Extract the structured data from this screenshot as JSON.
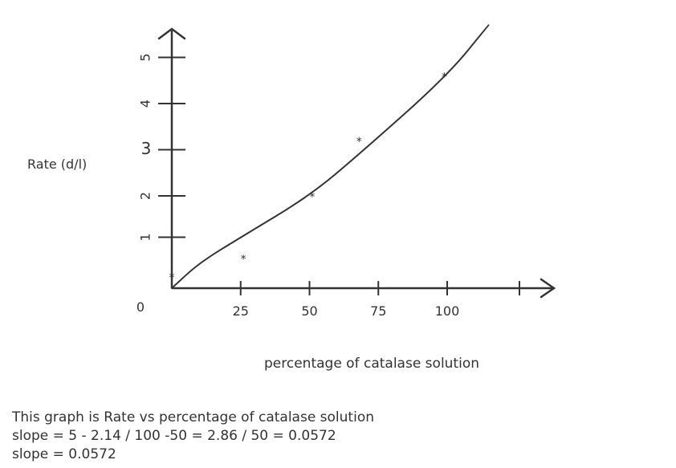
{
  "chart_data": {
    "type": "scatter",
    "title": "",
    "xlabel": "percentage of catalase solution",
    "ylabel": "Rate (d/l)",
    "x_ticks": [
      25,
      50,
      75,
      100
    ],
    "y_ticks": [
      1,
      2,
      3,
      4,
      5
    ],
    "origin_label": "0",
    "xlim": [
      0,
      125
    ],
    "ylim": [
      0,
      5.5
    ],
    "grid": false,
    "points": [
      {
        "x": 0,
        "y": 0.25
      },
      {
        "x": 26,
        "y": 0.65
      },
      {
        "x": 51,
        "y": 2.0
      },
      {
        "x": 68,
        "y": 3.2
      },
      {
        "x": 99,
        "y": 4.6
      }
    ],
    "marker": "*",
    "trend_line": [
      {
        "x": 0,
        "y": 0
      },
      {
        "x": 10,
        "y": 0.55
      },
      {
        "x": 25,
        "y": 1.1
      },
      {
        "x": 50,
        "y": 2.0
      },
      {
        "x": 68,
        "y": 2.9
      },
      {
        "x": 100,
        "y": 4.6
      },
      {
        "x": 115,
        "y": 5.7
      }
    ]
  },
  "notes": [
    "This graph is Rate vs percentage of catalase solution",
    "slope = 5 - 2.14 / 100 -50 = 2.86 / 50 = 0.0572",
    "slope = 0.0572"
  ],
  "colors": {
    "ink": "#333333"
  }
}
